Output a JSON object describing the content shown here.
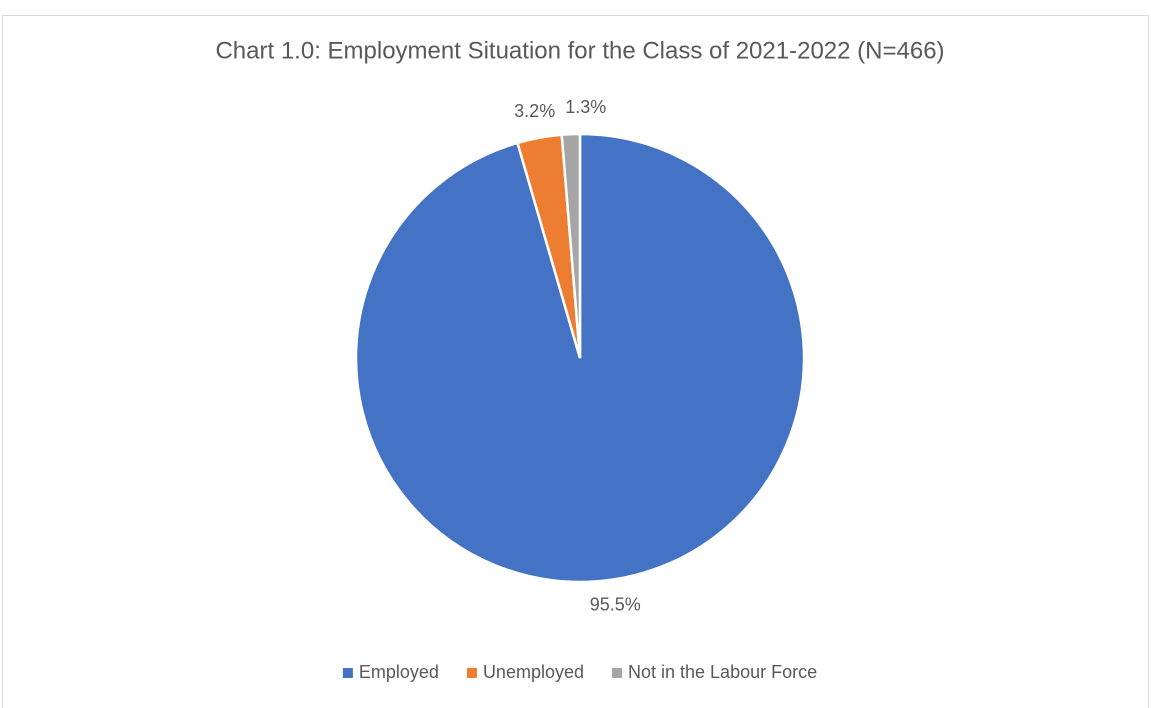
{
  "chart_data": {
    "type": "pie",
    "title": "Chart 1.0: Employment Situation for the Class of 2021-2022 (N=466)",
    "categories": [
      "Employed",
      "Unemployed",
      "Not in the Labour Force"
    ],
    "values": [
      95.5,
      3.2,
      1.3
    ],
    "value_labels": [
      "95.5%",
      "3.2%",
      "1.3%"
    ],
    "colors": [
      "#4472c4",
      "#ed7d31",
      "#a5a5a5"
    ],
    "legend": "bottom"
  }
}
